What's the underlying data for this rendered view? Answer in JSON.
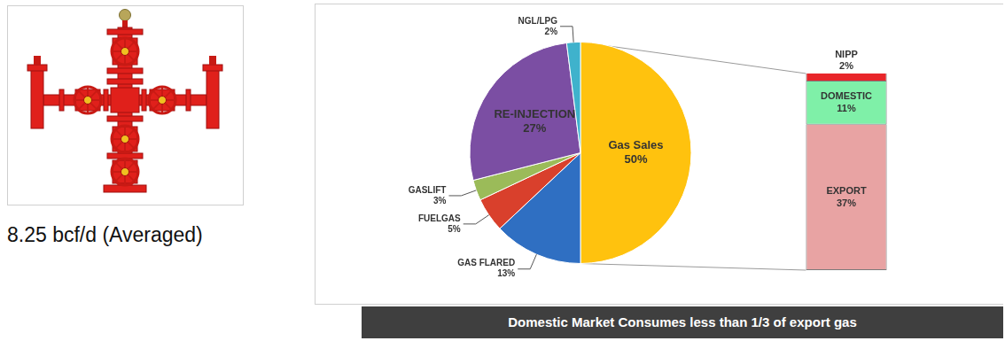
{
  "caption": "8.25 bcf/d (Averaged)",
  "chart_data": [
    {
      "type": "pie",
      "categories": [
        "Gas Sales",
        "GAS FLARED",
        "FUELGAS",
        "GASLIFT",
        "RE-INJECTION",
        "NGL/LPG"
      ],
      "values": [
        50,
        13,
        5,
        3,
        27,
        2
      ],
      "value_labels": [
        "50%",
        "13%",
        "5%",
        "3%",
        "27%",
        "2%"
      ],
      "colors": [
        "#ffc20e",
        "#2f6fc2",
        "#d9402c",
        "#9bbb59",
        "#7b4ea3",
        "#3fb2cc"
      ],
      "data_labels": true
    },
    {
      "type": "bar",
      "stacked": true,
      "categories": [
        null
      ],
      "series": [
        {
          "name": "NIPP",
          "color": "#e8262a",
          "values": [
            2
          ],
          "value_labels": [
            "2%"
          ]
        },
        {
          "name": "DOMESTIC",
          "color": "#7ff0a8",
          "values": [
            11
          ],
          "value_labels": [
            "11%"
          ]
        },
        {
          "name": "EXPORT",
          "color": "#e8a3a3",
          "values": [
            37
          ],
          "value_labels": [
            "37%"
          ]
        }
      ],
      "ylim": [
        0,
        50
      ],
      "grid": false,
      "tick_labels": false,
      "data_labels": true
    }
  ],
  "banner": "Domestic Market Consumes less than 1/3 of export gas"
}
